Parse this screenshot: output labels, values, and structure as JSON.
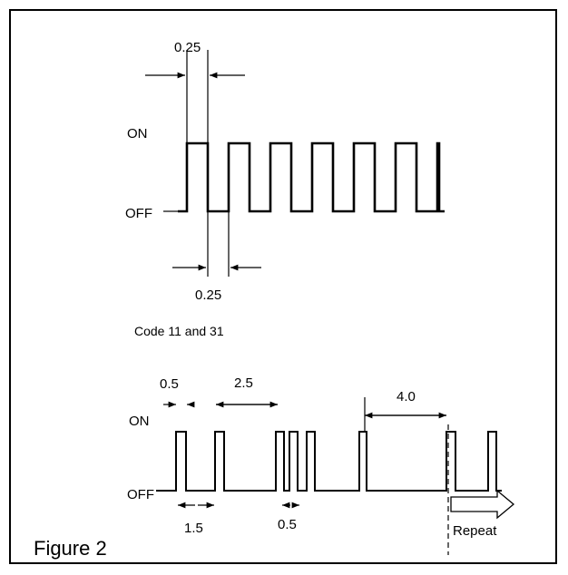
{
  "figure_caption": "Figure 2",
  "top_diagram": {
    "level_on": "ON",
    "level_off": "OFF",
    "pulse_width_label": "0.25",
    "gap_width_label": "0.25",
    "caption": "Code 11 and 31"
  },
  "bottom_diagram": {
    "level_on": "ON",
    "level_off": "OFF",
    "labels": {
      "pulse_0_5": "0.5",
      "interval_2_5": "2.5",
      "interval_4_0": "4.0",
      "gap_1_5": "1.5",
      "gap_0_5": "0.5",
      "repeat": "Repeat"
    }
  }
}
